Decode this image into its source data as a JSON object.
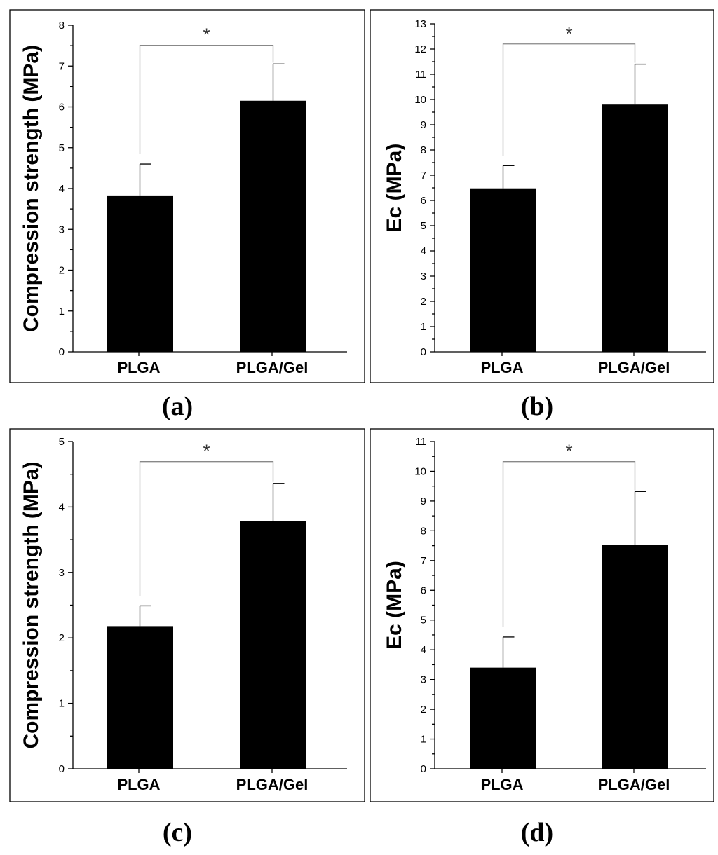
{
  "chart_data": [
    {
      "panel": "(a)",
      "type": "bar",
      "categories": [
        "PLGA",
        "PLGA/Gel"
      ],
      "values": [
        3.83,
        6.15
      ],
      "errors": [
        0.77,
        0.9
      ],
      "ylabel": "Compression strength (MPa)",
      "ylim": [
        0,
        8
      ],
      "yticks": [
        "0",
        "1",
        "2",
        "3",
        "4",
        "5",
        "6",
        "7",
        "8"
      ],
      "significance": "*"
    },
    {
      "panel": "(b)",
      "type": "bar",
      "categories": [
        "PLGA",
        "PLGA/Gel"
      ],
      "values": [
        6.48,
        9.8
      ],
      "errors": [
        0.9,
        1.6
      ],
      "ylabel": "Ec (MPa)",
      "ylim": [
        0,
        13
      ],
      "yticks": [
        "0",
        "1",
        "2",
        "3",
        "4",
        "5",
        "6",
        "7",
        "8",
        "9",
        "10",
        "11",
        "12",
        "13"
      ],
      "significance": "*"
    },
    {
      "panel": "(c)",
      "type": "bar",
      "categories": [
        "PLGA",
        "PLGA/Gel"
      ],
      "values": [
        2.18,
        3.79
      ],
      "errors": [
        0.31,
        0.57
      ],
      "ylabel": "Compression strength (MPa)",
      "ylim": [
        0,
        5
      ],
      "yticks": [
        "0",
        "1",
        "2",
        "3",
        "4",
        "5"
      ],
      "significance": "*"
    },
    {
      "panel": "(d)",
      "type": "bar",
      "categories": [
        "PLGA",
        "PLGA/Gel"
      ],
      "values": [
        3.4,
        7.52
      ],
      "errors": [
        1.03,
        1.8
      ],
      "ylabel": "Ec (MPa)",
      "ylim": [
        0,
        11
      ],
      "yticks": [
        "0",
        "1",
        "2",
        "3",
        "4",
        "5",
        "6",
        "7",
        "8",
        "9",
        "10",
        "11"
      ],
      "significance": "*"
    }
  ]
}
